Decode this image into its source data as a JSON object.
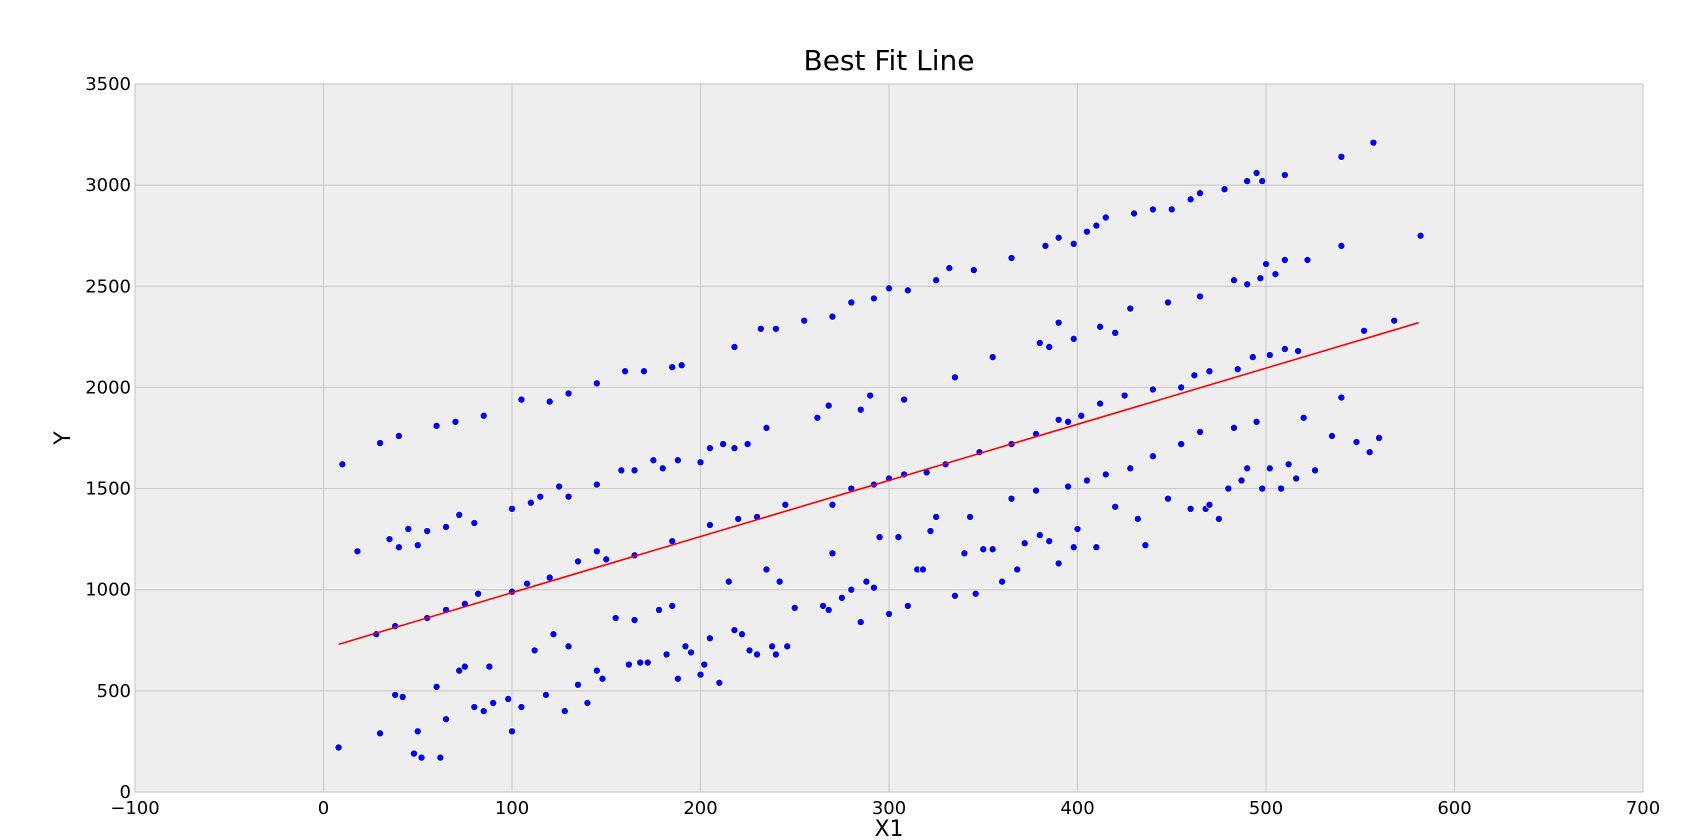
{
  "chart_data": {
    "type": "scatter",
    "title": "Best Fit Line",
    "xlabel": "X1",
    "ylabel": "Y",
    "xlim": [
      -100,
      700
    ],
    "ylim": [
      0,
      3500
    ],
    "xticks": [
      -100,
      0,
      100,
      200,
      300,
      400,
      500,
      600,
      700
    ],
    "xtick_labels": [
      "−100",
      "0",
      "100",
      "200",
      "300",
      "400",
      "500",
      "600",
      "700"
    ],
    "yticks": [
      0,
      500,
      1000,
      1500,
      2000,
      2500,
      3000,
      3500
    ],
    "ytick_labels": [
      "0",
      "500",
      "1000",
      "1500",
      "2000",
      "2500",
      "3000",
      "3500"
    ],
    "grid": true,
    "legend": "none",
    "colors": {
      "background": "#eeeeee",
      "grid": "#cccccc",
      "points": "#0000ff",
      "fit_line": "#ff0000"
    },
    "points": [
      [
        10,
        1620
      ],
      [
        30,
        1725
      ],
      [
        40,
        1760
      ],
      [
        60,
        1810
      ],
      [
        70,
        1830
      ],
      [
        85,
        1860
      ],
      [
        105,
        1940
      ],
      [
        120,
        1930
      ],
      [
        130,
        1970
      ],
      [
        145,
        2020
      ],
      [
        160,
        2080
      ],
      [
        170,
        2080
      ],
      [
        185,
        2100
      ],
      [
        190,
        2110
      ],
      [
        218,
        2200
      ],
      [
        232,
        2290
      ],
      [
        240,
        2290
      ],
      [
        255,
        2330
      ],
      [
        270,
        2350
      ],
      [
        280,
        2420
      ],
      [
        292,
        2440
      ],
      [
        300,
        2490
      ],
      [
        310,
        2480
      ],
      [
        325,
        2530
      ],
      [
        332,
        2590
      ],
      [
        345,
        2580
      ],
      [
        365,
        2640
      ],
      [
        383,
        2700
      ],
      [
        390,
        2740
      ],
      [
        398,
        2710
      ],
      [
        405,
        2770
      ],
      [
        410,
        2800
      ],
      [
        415,
        2840
      ],
      [
        430,
        2860
      ],
      [
        440,
        2880
      ],
      [
        450,
        2880
      ],
      [
        460,
        2930
      ],
      [
        465,
        2960
      ],
      [
        478,
        2980
      ],
      [
        490,
        3020
      ],
      [
        495,
        3060
      ],
      [
        498,
        3020
      ],
      [
        510,
        3050
      ],
      [
        540,
        3140
      ],
      [
        557,
        3210
      ],
      [
        18,
        1190
      ],
      [
        35,
        1250
      ],
      [
        40,
        1210
      ],
      [
        45,
        1300
      ],
      [
        50,
        1220
      ],
      [
        55,
        1290
      ],
      [
        65,
        1310
      ],
      [
        72,
        1370
      ],
      [
        80,
        1330
      ],
      [
        100,
        1400
      ],
      [
        110,
        1430
      ],
      [
        115,
        1460
      ],
      [
        125,
        1510
      ],
      [
        130,
        1460
      ],
      [
        145,
        1520
      ],
      [
        158,
        1590
      ],
      [
        165,
        1590
      ],
      [
        175,
        1640
      ],
      [
        180,
        1600
      ],
      [
        188,
        1640
      ],
      [
        200,
        1630
      ],
      [
        205,
        1700
      ],
      [
        212,
        1720
      ],
      [
        218,
        1700
      ],
      [
        225,
        1720
      ],
      [
        235,
        1800
      ],
      [
        245,
        1420
      ],
      [
        262,
        1850
      ],
      [
        268,
        1910
      ],
      [
        285,
        1890
      ],
      [
        290,
        1960
      ],
      [
        308,
        1940
      ],
      [
        320,
        1580
      ],
      [
        335,
        2050
      ],
      [
        355,
        2150
      ],
      [
        380,
        2220
      ],
      [
        385,
        2200
      ],
      [
        390,
        2320
      ],
      [
        398,
        2240
      ],
      [
        412,
        2300
      ],
      [
        420,
        2270
      ],
      [
        428,
        2390
      ],
      [
        448,
        2420
      ],
      [
        465,
        2450
      ],
      [
        483,
        2530
      ],
      [
        490,
        2510
      ],
      [
        497,
        2540
      ],
      [
        500,
        2610
      ],
      [
        505,
        2560
      ],
      [
        510,
        2630
      ],
      [
        522,
        2630
      ],
      [
        540,
        2700
      ],
      [
        582,
        2750
      ],
      [
        28,
        780
      ],
      [
        38,
        820
      ],
      [
        55,
        860
      ],
      [
        65,
        900
      ],
      [
        75,
        930
      ],
      [
        82,
        980
      ],
      [
        100,
        990
      ],
      [
        108,
        1030
      ],
      [
        120,
        1060
      ],
      [
        135,
        1140
      ],
      [
        145,
        1190
      ],
      [
        150,
        1150
      ],
      [
        165,
        1170
      ],
      [
        185,
        1240
      ],
      [
        205,
        1320
      ],
      [
        220,
        1350
      ],
      [
        230,
        1360
      ],
      [
        245,
        1420
      ],
      [
        270,
        1420
      ],
      [
        280,
        1500
      ],
      [
        292,
        1520
      ],
      [
        300,
        1550
      ],
      [
        308,
        1570
      ],
      [
        320,
        1580
      ],
      [
        330,
        1620
      ],
      [
        348,
        1680
      ],
      [
        365,
        1720
      ],
      [
        378,
        1770
      ],
      [
        390,
        1840
      ],
      [
        395,
        1830
      ],
      [
        402,
        1860
      ],
      [
        412,
        1920
      ],
      [
        425,
        1960
      ],
      [
        440,
        1990
      ],
      [
        455,
        2000
      ],
      [
        462,
        2060
      ],
      [
        470,
        2080
      ],
      [
        485,
        2090
      ],
      [
        493,
        2150
      ],
      [
        502,
        2160
      ],
      [
        510,
        2190
      ],
      [
        517,
        2180
      ],
      [
        552,
        2280
      ],
      [
        568,
        2330
      ],
      [
        8,
        220
      ],
      [
        30,
        290
      ],
      [
        38,
        480
      ],
      [
        42,
        470
      ],
      [
        48,
        190
      ],
      [
        52,
        170
      ],
      [
        50,
        300
      ],
      [
        60,
        520
      ],
      [
        62,
        170
      ],
      [
        65,
        360
      ],
      [
        72,
        600
      ],
      [
        75,
        620
      ],
      [
        80,
        420
      ],
      [
        85,
        400
      ],
      [
        88,
        620
      ],
      [
        90,
        440
      ],
      [
        98,
        460
      ],
      [
        100,
        300
      ],
      [
        105,
        420
      ],
      [
        112,
        700
      ],
      [
        118,
        480
      ],
      [
        122,
        780
      ],
      [
        128,
        400
      ],
      [
        130,
        720
      ],
      [
        135,
        530
      ],
      [
        140,
        440
      ],
      [
        145,
        600
      ],
      [
        148,
        560
      ],
      [
        155,
        860
      ],
      [
        162,
        630
      ],
      [
        165,
        850
      ],
      [
        168,
        640
      ],
      [
        172,
        640
      ],
      [
        178,
        900
      ],
      [
        182,
        680
      ],
      [
        185,
        920
      ],
      [
        188,
        560
      ],
      [
        192,
        720
      ],
      [
        195,
        690
      ],
      [
        200,
        580
      ],
      [
        202,
        630
      ],
      [
        205,
        760
      ],
      [
        210,
        540
      ],
      [
        215,
        1040
      ],
      [
        218,
        800
      ],
      [
        222,
        780
      ],
      [
        226,
        700
      ],
      [
        230,
        680
      ],
      [
        235,
        1100
      ],
      [
        238,
        720
      ],
      [
        240,
        680
      ],
      [
        242,
        1040
      ],
      [
        246,
        720
      ],
      [
        250,
        910
      ],
      [
        265,
        920
      ],
      [
        268,
        900
      ],
      [
        270,
        1180
      ],
      [
        275,
        960
      ],
      [
        280,
        1000
      ],
      [
        285,
        840
      ],
      [
        288,
        1040
      ],
      [
        292,
        1010
      ],
      [
        295,
        1260
      ],
      [
        300,
        880
      ],
      [
        305,
        1260
      ],
      [
        310,
        920
      ],
      [
        315,
        1100
      ],
      [
        318,
        1100
      ],
      [
        322,
        1290
      ],
      [
        325,
        1360
      ],
      [
        335,
        970
      ],
      [
        340,
        1180
      ],
      [
        343,
        1360
      ],
      [
        346,
        980
      ],
      [
        350,
        1200
      ],
      [
        355,
        1200
      ],
      [
        360,
        1040
      ],
      [
        365,
        1450
      ],
      [
        368,
        1100
      ],
      [
        372,
        1230
      ],
      [
        378,
        1490
      ],
      [
        380,
        1270
      ],
      [
        385,
        1240
      ],
      [
        390,
        1130
      ],
      [
        395,
        1510
      ],
      [
        398,
        1210
      ],
      [
        400,
        1300
      ],
      [
        405,
        1540
      ],
      [
        410,
        1210
      ],
      [
        415,
        1570
      ],
      [
        420,
        1410
      ],
      [
        428,
        1600
      ],
      [
        432,
        1350
      ],
      [
        436,
        1220
      ],
      [
        440,
        1660
      ],
      [
        448,
        1450
      ],
      [
        455,
        1720
      ],
      [
        460,
        1400
      ],
      [
        465,
        1780
      ],
      [
        468,
        1400
      ],
      [
        470,
        1420
      ],
      [
        475,
        1350
      ],
      [
        480,
        1500
      ],
      [
        483,
        1800
      ],
      [
        487,
        1540
      ],
      [
        490,
        1600
      ],
      [
        495,
        1830
      ],
      [
        498,
        1500
      ],
      [
        502,
        1600
      ],
      [
        508,
        1500
      ],
      [
        512,
        1620
      ],
      [
        516,
        1550
      ],
      [
        520,
        1850
      ],
      [
        526,
        1590
      ],
      [
        535,
        1760
      ],
      [
        540,
        1950
      ],
      [
        548,
        1730
      ],
      [
        555,
        1680
      ],
      [
        560,
        1750
      ]
    ],
    "fit_line": {
      "x": [
        8,
        581
      ],
      "y": [
        730,
        2320
      ]
    }
  }
}
